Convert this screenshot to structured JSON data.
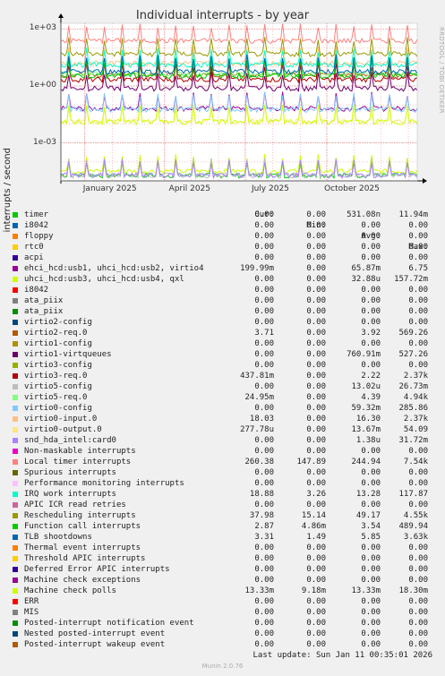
{
  "header": {
    "title": "Individual interrupts - by year",
    "side_label": "RRDTOOL / TOBI OETIKER",
    "footer_last_update": "Last update: Sun Jan 11 00:35:01 2026",
    "footer_version": "Munin 2.0.76"
  },
  "legend_header": {
    "cur": "Cur:",
    "min": "Min:",
    "avg": "Avg:",
    "max": "Max:"
  },
  "chart_data": {
    "type": "line",
    "title": "Individual interrupts - by year",
    "ylabel": "interrupts / second",
    "yscale": "log",
    "ylim": [
      1e-05,
      2000
    ],
    "y_ticks": [
      "1e+03",
      "1e+00",
      "1e-03"
    ],
    "y_tick_values": [
      1000,
      1,
      0.001
    ],
    "x_ticks": [
      "January 2025",
      "April 2025",
      "July 2025",
      "October 2025"
    ],
    "grid": true,
    "legend_position": "below",
    "series": [
      {
        "name": "timer",
        "color": "#00cc00",
        "cur": "0.00",
        "min": "0.00",
        "avg": "531.08n",
        "max": "11.94m"
      },
      {
        "name": "i8042",
        "color": "#0066b3",
        "cur": "0.00",
        "min": "0.00",
        "avg": "0.00",
        "max": "0.00"
      },
      {
        "name": "floppy",
        "color": "#ff8000",
        "cur": "0.00",
        "min": "0.00",
        "avg": "0.00",
        "max": "0.00"
      },
      {
        "name": "rtc0",
        "color": "#ffcc00",
        "cur": "0.00",
        "min": "0.00",
        "avg": "0.00",
        "max": "0.00"
      },
      {
        "name": "acpi",
        "color": "#330099",
        "cur": "0.00",
        "min": "0.00",
        "avg": "0.00",
        "max": "0.00"
      },
      {
        "name": "ehci_hcd:usb1, uhci_hcd:usb2, virtio4",
        "color": "#990099",
        "cur": "199.99m",
        "min": "0.00",
        "avg": "65.87m",
        "max": "6.75"
      },
      {
        "name": "uhci_hcd:usb3, uhci_hcd:usb4, qxl",
        "color": "#ccff00",
        "cur": "0.00",
        "min": "0.00",
        "avg": "32.88u",
        "max": "157.72m"
      },
      {
        "name": "i8042",
        "color": "#ff0000",
        "cur": "0.00",
        "min": "0.00",
        "avg": "0.00",
        "max": "0.00"
      },
      {
        "name": "ata_piix",
        "color": "#808080",
        "cur": "0.00",
        "min": "0.00",
        "avg": "0.00",
        "max": "0.00"
      },
      {
        "name": "ata_piix",
        "color": "#008f00",
        "cur": "0.00",
        "min": "0.00",
        "avg": "0.00",
        "max": "0.00"
      },
      {
        "name": "virtio2-config",
        "color": "#00487d",
        "cur": "0.00",
        "min": "0.00",
        "avg": "0.00",
        "max": "0.00"
      },
      {
        "name": "virtio2-req.0",
        "color": "#b35a00",
        "cur": "3.71",
        "min": "0.00",
        "avg": "3.92",
        "max": "569.26"
      },
      {
        "name": "virtio1-config",
        "color": "#b38f00",
        "cur": "0.00",
        "min": "0.00",
        "avg": "0.00",
        "max": "0.00"
      },
      {
        "name": "virtio1-virtqueues",
        "color": "#6b006b",
        "cur": "0.00",
        "min": "0.00",
        "avg": "760.91m",
        "max": "527.26"
      },
      {
        "name": "virtio3-config",
        "color": "#8fb300",
        "cur": "0.00",
        "min": "0.00",
        "avg": "0.00",
        "max": "0.00"
      },
      {
        "name": "virtio3-req.0",
        "color": "#b30000",
        "cur": "437.81m",
        "min": "0.00",
        "avg": "2.22",
        "max": "2.37k"
      },
      {
        "name": "virtio5-config",
        "color": "#bebebe",
        "cur": "0.00",
        "min": "0.00",
        "avg": "13.02u",
        "max": "26.73m"
      },
      {
        "name": "virtio5-req.0",
        "color": "#80ff80",
        "cur": "24.95m",
        "min": "0.00",
        "avg": "4.39",
        "max": "4.94k"
      },
      {
        "name": "virtio0-config",
        "color": "#80c9ff",
        "cur": "0.00",
        "min": "0.00",
        "avg": "59.32m",
        "max": "285.86"
      },
      {
        "name": "virtio0-input.0",
        "color": "#ffc080",
        "cur": "18.03",
        "min": "0.00",
        "avg": "16.30",
        "max": "2.37k"
      },
      {
        "name": "virtio0-output.0",
        "color": "#ffe680",
        "cur": "277.78u",
        "min": "0.00",
        "avg": "13.67m",
        "max": "54.09"
      },
      {
        "name": "snd_hda_intel:card0",
        "color": "#aa80ff",
        "cur": "0.00",
        "min": "0.00",
        "avg": "1.38u",
        "max": "31.72m"
      },
      {
        "name": "Non-maskable interrupts",
        "color": "#ee00cc",
        "cur": "0.00",
        "min": "0.00",
        "avg": "0.00",
        "max": "0.00"
      },
      {
        "name": "Local timer interrupts",
        "color": "#ff8080",
        "cur": "260.38",
        "min": "147.89",
        "avg": "244.94",
        "max": "7.54k"
      },
      {
        "name": "Spurious interrupts",
        "color": "#666600",
        "cur": "0.00",
        "min": "0.00",
        "avg": "0.00",
        "max": "0.00"
      },
      {
        "name": "Performance monitoring interrupts",
        "color": "#ffbfff",
        "cur": "0.00",
        "min": "0.00",
        "avg": "0.00",
        "max": "0.00"
      },
      {
        "name": "IRQ work interrupts",
        "color": "#00ffcc",
        "cur": "18.88",
        "min": "3.26",
        "avg": "13.28",
        "max": "117.87"
      },
      {
        "name": "APIC ICR read retries",
        "color": "#cc6699",
        "cur": "0.00",
        "min": "0.00",
        "avg": "0.00",
        "max": "0.00"
      },
      {
        "name": "Rescheduling interrupts",
        "color": "#999900",
        "cur": "37.98",
        "min": "15.14",
        "avg": "49.17",
        "max": "4.55k"
      },
      {
        "name": "Function call interrupts",
        "color": "#00cc00",
        "cur": "2.87",
        "min": "4.86m",
        "avg": "3.54",
        "max": "489.94"
      },
      {
        "name": "TLB shootdowns",
        "color": "#0066b3",
        "cur": "3.31",
        "min": "1.49",
        "avg": "5.85",
        "max": "3.63k"
      },
      {
        "name": "Thermal event interrupts",
        "color": "#ff8000",
        "cur": "0.00",
        "min": "0.00",
        "avg": "0.00",
        "max": "0.00"
      },
      {
        "name": "Threshold APIC interrupts",
        "color": "#ffcc00",
        "cur": "0.00",
        "min": "0.00",
        "avg": "0.00",
        "max": "0.00"
      },
      {
        "name": "Deferred Error APIC interrupts",
        "color": "#330099",
        "cur": "0.00",
        "min": "0.00",
        "avg": "0.00",
        "max": "0.00"
      },
      {
        "name": "Machine check exceptions",
        "color": "#990099",
        "cur": "0.00",
        "min": "0.00",
        "avg": "0.00",
        "max": "0.00"
      },
      {
        "name": "Machine check polls",
        "color": "#ccff00",
        "cur": "13.33m",
        "min": "9.18m",
        "avg": "13.33m",
        "max": "18.30m"
      },
      {
        "name": "ERR",
        "color": "#ff0000",
        "cur": "0.00",
        "min": "0.00",
        "avg": "0.00",
        "max": "0.00"
      },
      {
        "name": "MIS",
        "color": "#808080",
        "cur": "0.00",
        "min": "0.00",
        "avg": "0.00",
        "max": "0.00"
      },
      {
        "name": "Posted-interrupt notification event",
        "color": "#008f00",
        "cur": "0.00",
        "min": "0.00",
        "avg": "0.00",
        "max": "0.00"
      },
      {
        "name": "Nested posted-interrupt event",
        "color": "#00487d",
        "cur": "0.00",
        "min": "0.00",
        "avg": "0.00",
        "max": "0.00"
      },
      {
        "name": "Posted-interrupt wakeup event",
        "color": "#b35a00",
        "cur": "0.00",
        "min": "0.00",
        "avg": "0.00",
        "max": "0.00"
      }
    ]
  }
}
